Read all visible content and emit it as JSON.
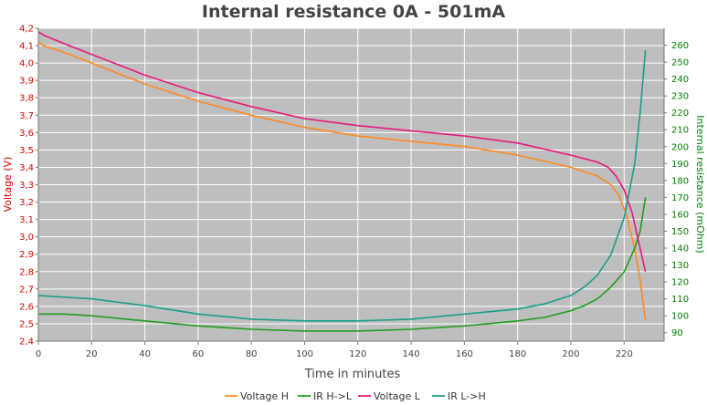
{
  "chart_data": {
    "type": "line",
    "title": "Internal resistance  0A - 501mA",
    "xlabel": "Time in minutes",
    "ylabel_left": "Voltage (V)",
    "ylabel_right": "Internal resistance (mOhm)",
    "xlim": [
      0,
      235
    ],
    "ylim_left": [
      2.4,
      4.2
    ],
    "ylim_right": [
      85,
      270
    ],
    "grid": true,
    "legend_position": "bottom",
    "x_ticks": [
      0,
      20,
      40,
      60,
      80,
      100,
      120,
      140,
      160,
      180,
      200,
      220
    ],
    "x_tick_labels": [
      "0",
      "20",
      "40",
      "60",
      "80",
      "100",
      "120",
      "140",
      "160",
      "180",
      "200",
      "220"
    ],
    "y_left_ticks": [
      2.4,
      2.5,
      2.6,
      2.7,
      2.8,
      2.9,
      3.0,
      3.1,
      3.2,
      3.3,
      3.4,
      3.5,
      3.6,
      3.7,
      3.8,
      3.9,
      4.0,
      4.1,
      4.2
    ],
    "y_left_tick_labels": [
      "2,4",
      "2,5",
      "2,6",
      "2,7",
      "2,8",
      "2,9",
      "3,0",
      "3,1",
      "3,2",
      "3,3",
      "3,4",
      "3,5",
      "3,6",
      "3,7",
      "3,8",
      "3,9",
      "4,0",
      "4,1",
      "4,2"
    ],
    "y_right_ticks": [
      90,
      100,
      110,
      120,
      130,
      140,
      150,
      160,
      170,
      180,
      190,
      200,
      210,
      220,
      230,
      240,
      250,
      260
    ],
    "y_right_tick_labels": [
      "90",
      "100",
      "110",
      "120",
      "130",
      "140",
      "150",
      "160",
      "170",
      "180",
      "190",
      "200",
      "210",
      "220",
      "230",
      "240",
      "250",
      "260"
    ],
    "series": [
      {
        "name": "Voltage H",
        "axis": "left",
        "color": "#ff8a1e",
        "x": [
          0,
          2,
          10,
          20,
          40,
          60,
          80,
          100,
          120,
          140,
          160,
          180,
          200,
          210,
          215,
          218,
          221,
          224,
          226,
          228
        ],
        "y": [
          4.12,
          4.1,
          4.06,
          4.0,
          3.88,
          3.78,
          3.7,
          3.63,
          3.58,
          3.55,
          3.52,
          3.47,
          3.4,
          3.35,
          3.3,
          3.24,
          3.12,
          2.93,
          2.75,
          2.52
        ]
      },
      {
        "name": "IR H->L",
        "axis": "right",
        "color": "#1f9e1f",
        "x": [
          0,
          10,
          20,
          40,
          60,
          80,
          100,
          120,
          140,
          160,
          180,
          190,
          200,
          205,
          210,
          215,
          220,
          224,
          226,
          228
        ],
        "y": [
          101,
          101,
          100,
          97,
          94,
          92,
          91,
          91,
          92,
          94,
          97,
          99,
          103,
          106,
          110,
          117,
          126,
          140,
          150,
          170
        ]
      },
      {
        "name": "Voltage L",
        "axis": "left",
        "color": "#e8187f",
        "x": [
          0,
          2,
          10,
          20,
          40,
          60,
          80,
          100,
          120,
          140,
          160,
          180,
          200,
          210,
          214,
          217,
          220,
          223,
          225,
          228
        ],
        "y": [
          4.18,
          4.16,
          4.11,
          4.05,
          3.93,
          3.83,
          3.75,
          3.68,
          3.64,
          3.61,
          3.58,
          3.54,
          3.47,
          3.43,
          3.4,
          3.35,
          3.27,
          3.14,
          3.0,
          2.8
        ]
      },
      {
        "name": "IR L->H",
        "axis": "right",
        "color": "#17a085",
        "x": [
          0,
          10,
          20,
          40,
          60,
          80,
          100,
          120,
          140,
          160,
          180,
          190,
          200,
          205,
          210,
          215,
          220,
          224,
          226,
          228
        ],
        "y": [
          112,
          111,
          110,
          106,
          101,
          98,
          97,
          97,
          98,
          101,
          104,
          107,
          112,
          117,
          124,
          136,
          158,
          190,
          220,
          257
        ]
      }
    ]
  }
}
